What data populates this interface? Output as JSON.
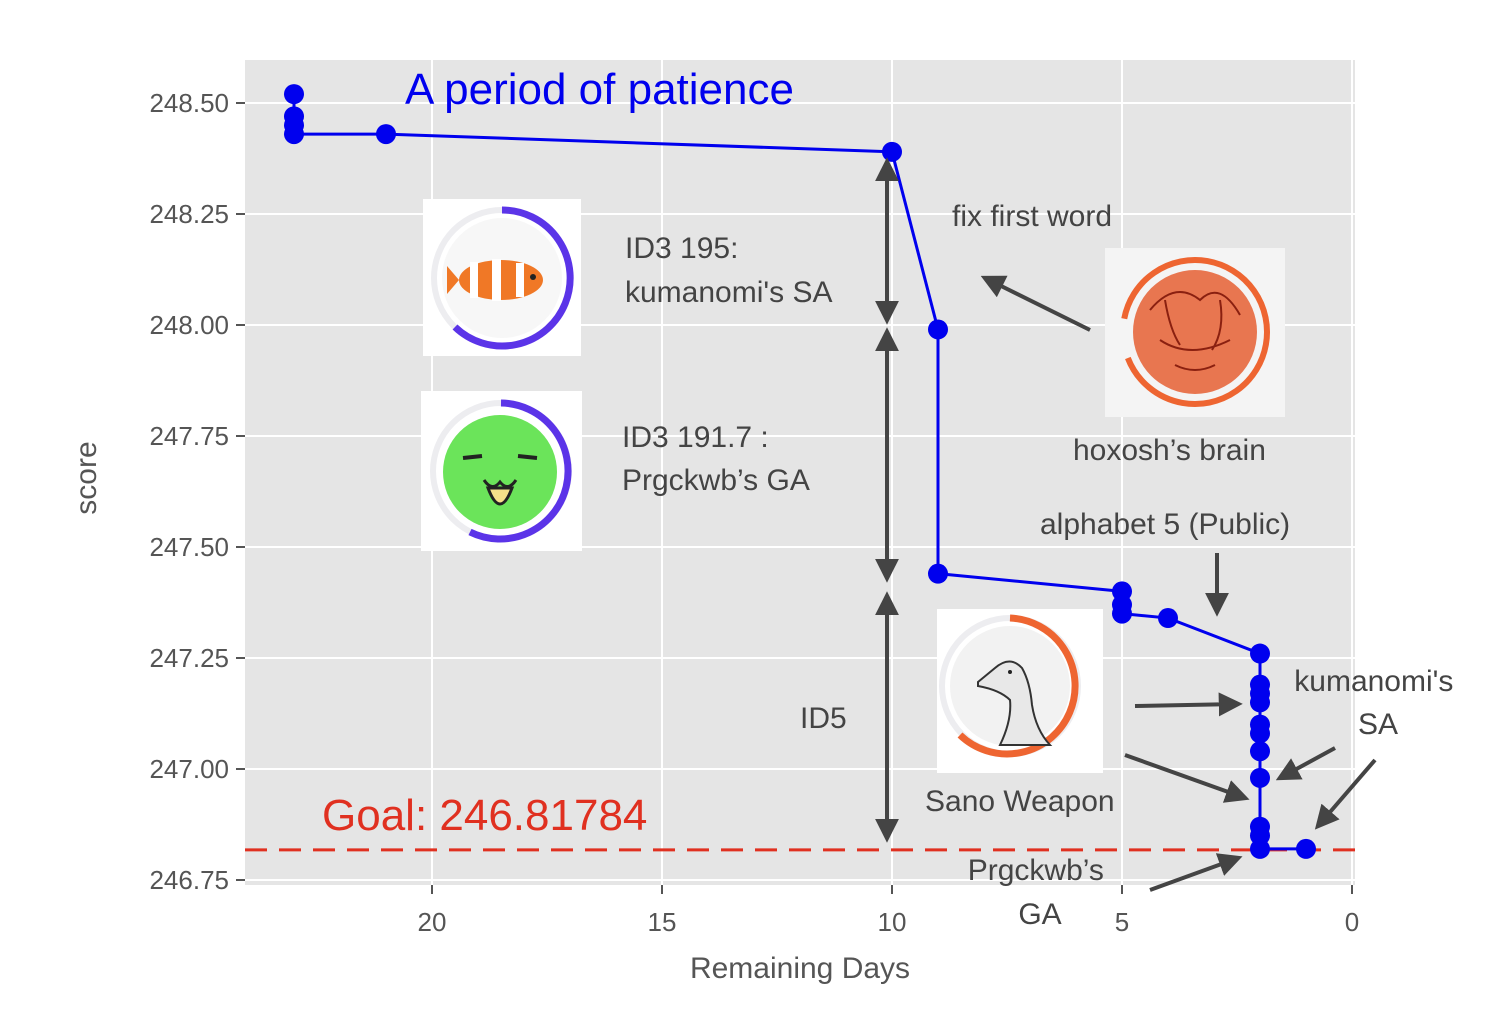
{
  "chart_data": {
    "type": "line",
    "title": "",
    "xlabel": "Remaining Days",
    "ylabel": "score",
    "xlim": [
      24,
      0
    ],
    "ylim": [
      246.72,
      248.6
    ],
    "x_inverted": true,
    "grid": true,
    "xticks": [
      20,
      15,
      10,
      5,
      0
    ],
    "xtick_labels": [
      "20",
      "15",
      "10",
      "5",
      "0"
    ],
    "yticks": [
      246.75,
      247.0,
      247.25,
      247.5,
      247.75,
      248.0,
      248.25,
      248.5
    ],
    "ytick_labels": [
      "246.75",
      "247.00",
      "247.25",
      "247.50",
      "247.75",
      "248.00",
      "248.25",
      "248.50"
    ],
    "series": [
      {
        "color": "#0000ee",
        "x": [
          23,
          23,
          23,
          23,
          21,
          10,
          9,
          9,
          5,
          5,
          5,
          4,
          2,
          2,
          2,
          2,
          2,
          2,
          2,
          2,
          2,
          2,
          2,
          1
        ],
        "y": [
          248.52,
          248.47,
          248.45,
          248.43,
          248.43,
          248.39,
          247.99,
          247.44,
          247.4,
          247.37,
          247.35,
          247.34,
          247.26,
          247.19,
          247.17,
          247.15,
          247.1,
          247.08,
          247.04,
          246.98,
          246.87,
          246.85,
          246.82,
          246.82
        ]
      }
    ],
    "goal": {
      "value": 246.81784,
      "label": "Goal: 246.81784",
      "color": "#e03020"
    },
    "subtitle": "A period of patience",
    "subtitle_color": "#0000ee"
  },
  "annotations": {
    "id3_195_line1": "ID3 195:",
    "id3_195_line2": "kumanomi's SA",
    "id3_191_line1": "ID3 191.7 :",
    "id3_191_line2": "Prgckwb’s GA",
    "id5": "ID5",
    "fix_first_word": "fix first word",
    "hoxosh_brain": "hoxosh’s brain",
    "alphabet5": "alphabet 5 (Public)",
    "kumanomi_sa_line1": "kumanomi's",
    "kumanomi_sa_line2": "SA",
    "sano_weapon": "Sano Weapon",
    "prgckwb_ga_line1": "Prgckwb’s",
    "prgckwb_ga_line2": "GA"
  },
  "colors": {
    "panel": "#e5e5e5",
    "grid": "#ffffff",
    "line": "#0000ee",
    "arrow": "#444444",
    "purple_ring": "#5b34e8",
    "orange_ring": "#ee6531"
  },
  "avatars": {
    "clownfish": "clownfish-avatar",
    "green_face": "green-face-avatar",
    "hoxosh": "hoxosh-sketch-avatar",
    "goose": "goose-avatar"
  }
}
